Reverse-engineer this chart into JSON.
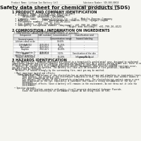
{
  "bg_color": "#f5f5f0",
  "title": "Safety data sheet for chemical products (SDS)",
  "header_left": "Product Name: Lithium Ion Battery Cell",
  "header_right": "Substance Number: SDS-008-00010\nEstablished / Revision: Dec.7.2010",
  "section1_title": "1 PRODUCT AND COMPANY IDENTIFICATION",
  "section1_lines": [
    "  • Product name: Lithium Ion Battery Cell",
    "  • Product code: Cylindrical-type cell",
    "       UR18650U, UR18650E, UR18650A",
    "  • Company name:   Sanyo Electric Co., Ltd., Mobile Energy Company",
    "  • Address:        2001 Kamitakanara, Sumoto-City, Hyogo, Japan",
    "  • Telephone number:   +81-799-26-4111",
    "  • Fax number:  +81-799-26-4121",
    "  • Emergency telephone number (daytime): +81-799-26-3862",
    "                                     (Night and holiday): +81-799-26-4121"
  ],
  "section2_title": "2 COMPOSITION / INFORMATION ON INGREDIENTS",
  "section2_intro": "  • Substance or preparation: Preparation",
  "section2_sub": "  • Information about the chemical nature of product:",
  "table_headers": [
    "Component",
    "CAS number",
    "Concentration /\nConcentration range",
    "Classification and\nhazard labeling"
  ],
  "table_col_header": "Several name",
  "table_rows": [
    [
      "Lithium cobalt oxide\n(LiMnCoNiO4)",
      "-",
      "30-60%",
      "-"
    ],
    [
      "Iron",
      "7439-89-6",
      "15-25%",
      "-"
    ],
    [
      "Aluminum",
      "7429-90-5",
      "2-5%",
      "-"
    ],
    [
      "Graphite\n(Metal in graphite-1)\n(All Mn in graphite-1)",
      "7782-42-5\n7439-97-6",
      "10-20%",
      "-"
    ],
    [
      "Copper",
      "7440-50-8",
      "5-15%",
      "Sensitization of the skin\ngroup No.2"
    ],
    [
      "Organic electrolyte",
      "-",
      "10-20%",
      "Inflammable liquid"
    ]
  ],
  "section3_title": "3 HAZARDS IDENTIFICATION",
  "section3_text": "For the battery cell, chemical materials are stored in a hermetically-sealed metal case, designed to withstand\ntemperature changes and electro-chemical reactions during normal use. As a result, during normal use, there is no\nphysical danger of ignition or explosion and therefore danger of hazardous materials leakage.\n   However, if exposed to a fire, added mechanical shocks, decomposes, when electro-chemical reactions occur,\nthe gas resides cannot be operated. The battery cell case will be breached of fire-potential, hazardous\nmaterials may be released.\n   Moreover, if heated strongly by the surrounding fire, emit gas may be emitted.\n\n  • Most important hazard and effects:\n     Human health effects:\n         Inhalation: The release of the electrolyte has an anesthesia action and stimulates in respiratory tract.\n         Skin contact: The release of the electrolyte stimulates a skin. The electrolyte skin contact causes a\n         sore and stimulation on the skin.\n         Eye contact: The release of the electrolyte stimulates eyes. The electrolyte eye contact causes a sore\n         and stimulation on the eye. Especially, a substance that causes a strong inflammation of the eye is\n         contained.\n         Environmental effects: Since a battery cell remains in the environment, do not throw out it into the\n         environment.\n\n  • Specific hazards:\n         If the electrolyte contacts with water, it will generate detrimental hydrogen fluoride.\n         Since the used electrolyte is inflammable liquid, do not bring close to fire."
}
